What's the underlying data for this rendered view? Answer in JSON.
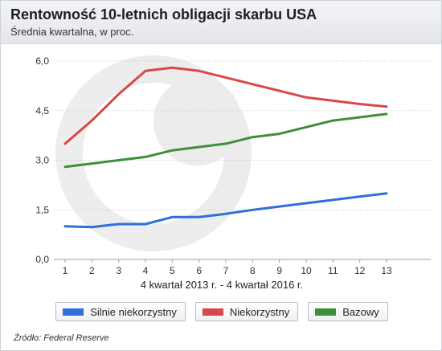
{
  "header": {
    "title": "Rentowność 10-letnich obligacji skarbu USA",
    "subtitle": "Średnia kwartalna, w proc."
  },
  "chart_data": {
    "type": "line",
    "title": "Rentowność 10-letnich obligacji skarbu USA",
    "subtitle": "Średnia kwartalna, w proc.",
    "xlabel": "4 kwartał 2013 r. - 4 kwartał 2016 r.",
    "ylabel": "",
    "x": [
      1,
      2,
      3,
      4,
      5,
      6,
      7,
      8,
      9,
      10,
      11,
      12,
      13
    ],
    "ylim": [
      0,
      6.0
    ],
    "yticks": [
      "0,0",
      "1,5",
      "3,0",
      "4,5",
      "6,0"
    ],
    "grid": true,
    "legend_position": "bottom",
    "series": [
      {
        "name": "Silnie niekorzystny",
        "color": "#2f6fd8",
        "values": [
          1.0,
          0.98,
          1.07,
          1.07,
          1.28,
          1.28,
          1.38,
          1.5,
          1.6,
          1.7,
          1.8,
          1.9,
          2.0
        ]
      },
      {
        "name": "Niekorzystny",
        "color": "#d9474a",
        "values": [
          3.5,
          4.2,
          5.0,
          5.7,
          5.8,
          5.7,
          5.5,
          5.3,
          5.1,
          4.9,
          4.8,
          4.7,
          4.62
        ]
      },
      {
        "name": "Bazowy",
        "color": "#3f8f3a",
        "values": [
          2.8,
          2.9,
          3.0,
          3.1,
          3.3,
          3.4,
          3.5,
          3.7,
          3.8,
          4.0,
          4.2,
          4.3,
          4.4
        ]
      }
    ]
  },
  "source": "Źródło: Federal Reserve"
}
